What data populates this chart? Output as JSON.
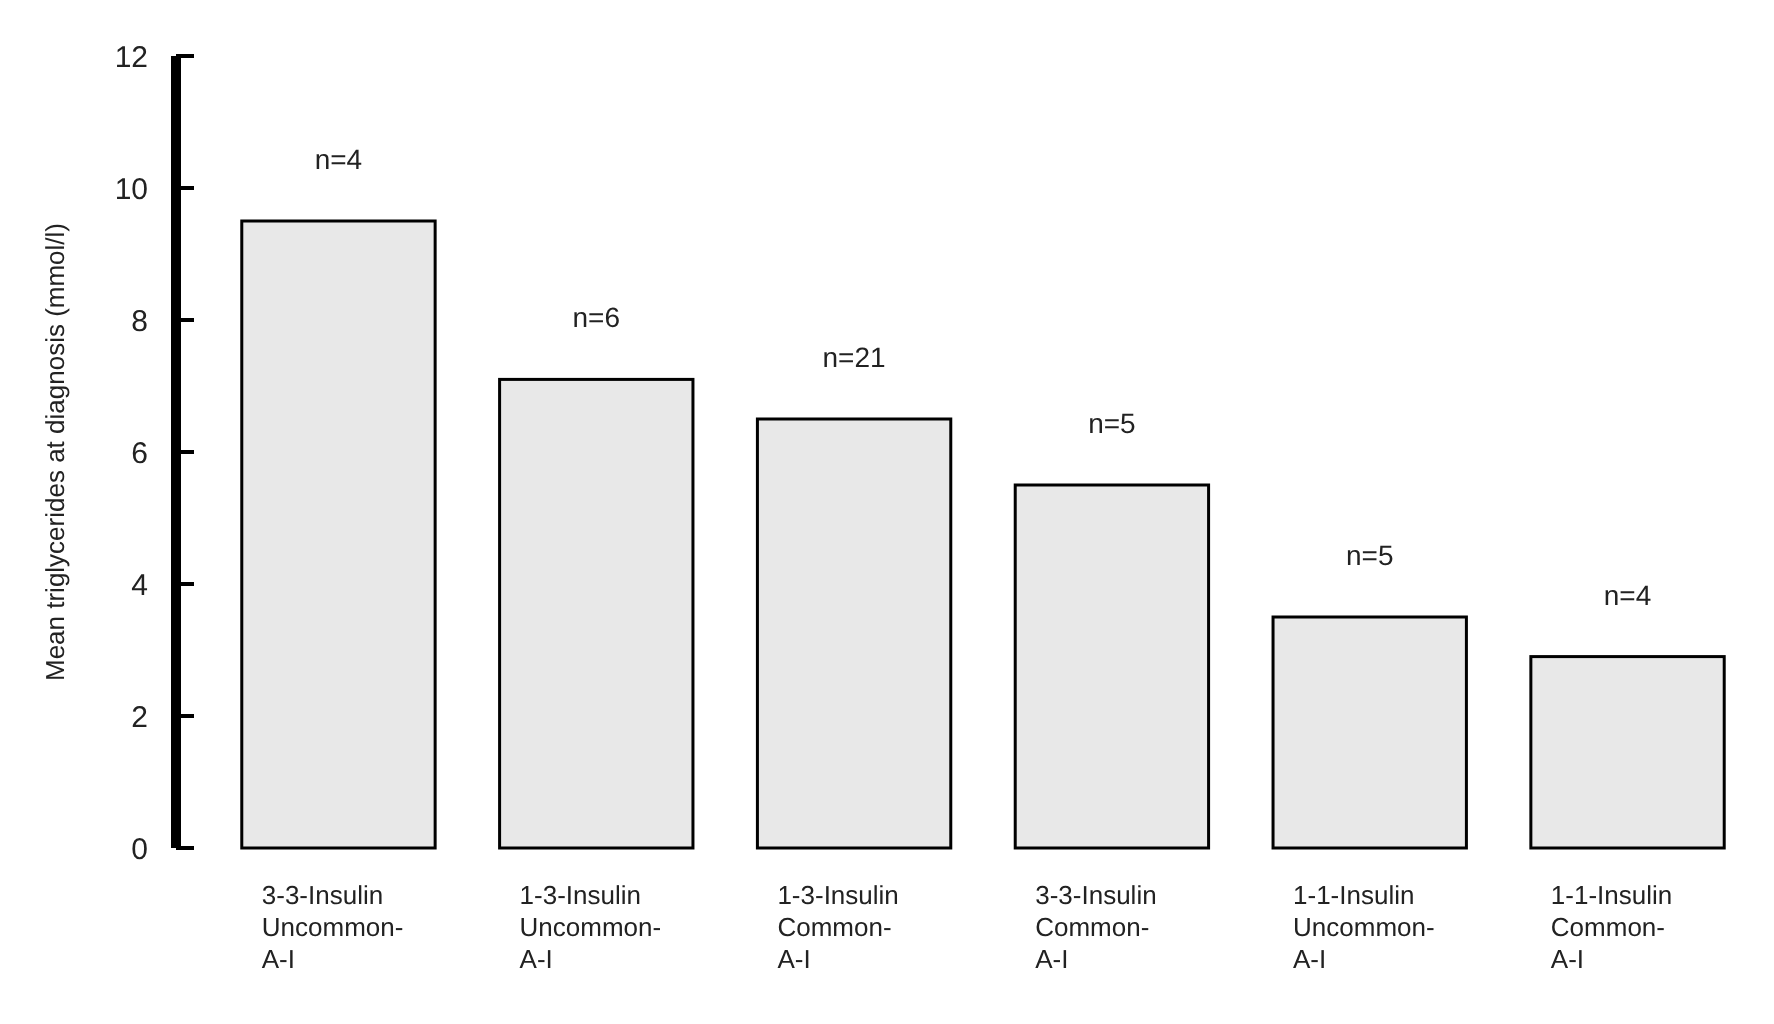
{
  "chart_data": {
    "type": "bar",
    "ylabel": "Mean triglycerides at diagnosis (mmol/l)",
    "categories": [
      "3-3-Insulin\nUncommon-\nA-I",
      "1-3-Insulin\nUncommon-\nA-I",
      "1-3-Insulin\nCommon-\nA-I",
      "3-3-Insulin\nCommon-\nA-I",
      "1-1-Insulin\nUncommon-\nA-I",
      "1-1-Insulin\nCommon-\nA-I"
    ],
    "values": [
      9.5,
      7.1,
      6.5,
      5.5,
      3.5,
      2.9
    ],
    "color": "#e8e8e8",
    "ylim": [
      0,
      12
    ],
    "yticks": [
      0,
      2,
      4,
      6,
      8,
      10,
      12
    ],
    "grid": false,
    "annotations": [
      {
        "text": "n=4",
        "x": "3-3-Insulin\nUncommon-\nA-I",
        "y": 9.5
      },
      {
        "text": "n=6",
        "x": "1-3-Insulin\nUncommon-\nA-I",
        "y": 7.1
      },
      {
        "text": "n=21",
        "x": "1-3-Insulin\nCommon-\nA-I",
        "y": 6.5
      },
      {
        "text": "n=5",
        "x": "3-3-Insulin\nCommon-\nA-I",
        "y": 5.5
      },
      {
        "text": "n=5",
        "x": "1-1-Insulin\nUncommon-\nA-I",
        "y": 3.5
      },
      {
        "text": "n=4",
        "x": "1-1-Insulin\nCommon-\nA-I",
        "y": 2.9
      }
    ]
  }
}
